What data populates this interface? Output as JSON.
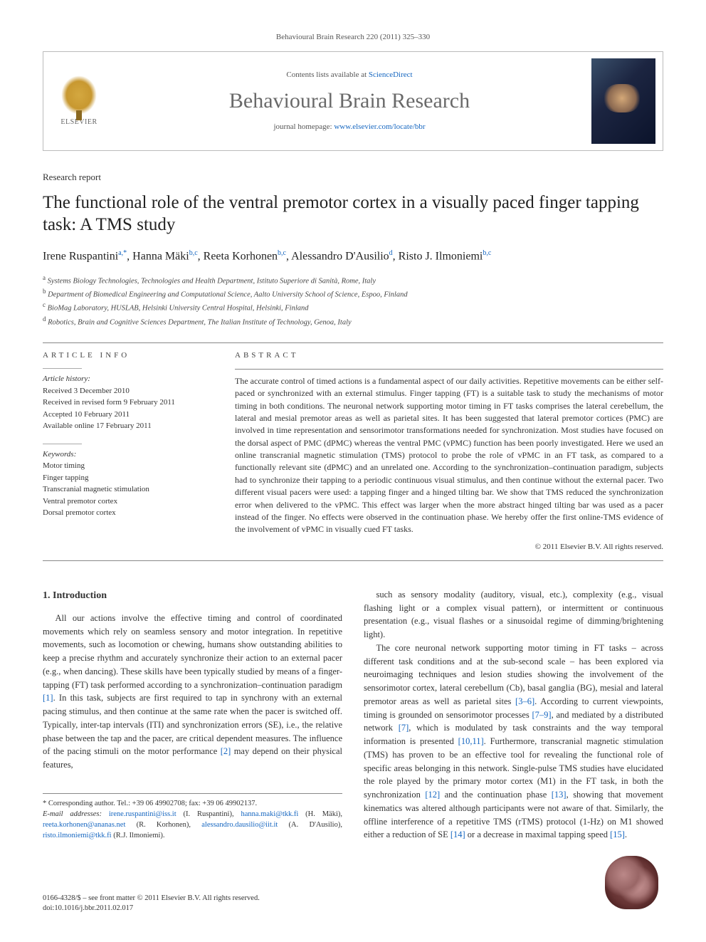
{
  "header": {
    "citation": "Behavioural Brain Research 220 (2011) 325–330",
    "contents_prefix": "Contents lists available at ",
    "contents_link": "ScienceDirect",
    "journal_name": "Behavioural Brain Research",
    "homepage_prefix": "journal homepage: ",
    "homepage_link": "www.elsevier.com/locate/bbr",
    "publisher_label": "ELSEVIER"
  },
  "article": {
    "type": "Research report",
    "title": "The functional role of the ventral premotor cortex in a visually paced finger tapping task: A TMS study",
    "authors_html": "Irene Ruspantini<sup>a,*</sup>, Hanna Mäki<sup>b,c</sup>, Reeta Korhonen<sup>b,c</sup>, Alessandro D'Ausilio<sup>d</sup>, Risto J. Ilmoniemi<sup>b,c</sup>",
    "affiliations": [
      "a Systems Biology Technologies, Technologies and Health Department, Istituto Superiore di Sanità, Rome, Italy",
      "b Department of Biomedical Engineering and Computational Science, Aalto University School of Science, Espoo, Finland",
      "c BioMag Laboratory, HUSLAB, Helsinki University Central Hospital, Helsinki, Finland",
      "d Robotics, Brain and Cognitive Sciences Department, The Italian Institute of Technology, Genoa, Italy"
    ]
  },
  "info": {
    "label": "ARTICLE INFO",
    "history_label": "Article history:",
    "history": [
      "Received 3 December 2010",
      "Received in revised form 9 February 2011",
      "Accepted 10 February 2011",
      "Available online 17 February 2011"
    ],
    "keywords_label": "Keywords:",
    "keywords": [
      "Motor timing",
      "Finger tapping",
      "Transcranial magnetic stimulation",
      "Ventral premotor cortex",
      "Dorsal premotor cortex"
    ]
  },
  "abstract": {
    "label": "ABSTRACT",
    "text": "The accurate control of timed actions is a fundamental aspect of our daily activities. Repetitive movements can be either self-paced or synchronized with an external stimulus. Finger tapping (FT) is a suitable task to study the mechanisms of motor timing in both conditions. The neuronal network supporting motor timing in FT tasks comprises the lateral cerebellum, the lateral and mesial premotor areas as well as parietal sites. It has been suggested that lateral premotor cortices (PMC) are involved in time representation and sensorimotor transformations needed for synchronization. Most studies have focused on the dorsal aspect of PMC (dPMC) whereas the ventral PMC (vPMC) function has been poorly investigated. Here we used an online transcranial magnetic stimulation (TMS) protocol to probe the role of vPMC in an FT task, as compared to a functionally relevant site (dPMC) and an unrelated one. According to the synchronization–continuation paradigm, subjects had to synchronize their tapping to a periodic continuous visual stimulus, and then continue without the external pacer. Two different visual pacers were used: a tapping finger and a hinged tilting bar. We show that TMS reduced the synchronization error when delivered to the vPMC. This effect was larger when the more abstract hinged tilting bar was used as a pacer instead of the finger. No effects were observed in the continuation phase. We hereby offer the first online-TMS evidence of the involvement of vPMC in visually cued FT tasks.",
    "copyright": "© 2011 Elsevier B.V. All rights reserved."
  },
  "body": {
    "intro_heading": "1. Introduction",
    "p1": "All our actions involve the effective timing and control of coordinated movements which rely on seamless sensory and motor integration. In repetitive movements, such as locomotion or chewing, humans show outstanding abilities to keep a precise rhythm and accurately synchronize their action to an external pacer (e.g., when dancing). These skills have been typically studied by means of a finger-tapping (FT) task performed according to a synchronization–continuation paradigm [1]. In this task, subjects are first required to tap in synchrony with an external pacing stimulus, and then continue at the same rate when the pacer is switched off. Typically, inter-tap intervals (ITI) and synchronization errors (SE), i.e., the relative phase between the tap and the pacer, are critical dependent measures. The influence of the pacing stimuli on the motor performance [2] may depend on their physical features,",
    "p2": "such as sensory modality (auditory, visual, etc.), complexity (e.g., visual flashing light or a complex visual pattern), or intermittent or continuous presentation (e.g., visual flashes or a sinusoidal regime of dimming/brightening light).",
    "p3": "The core neuronal network supporting motor timing in FT tasks – across different task conditions and at the sub-second scale – has been explored via neuroimaging techniques and lesion studies showing the involvement of the sensorimotor cortex, lateral cerebellum (Cb), basal ganglia (BG), mesial and lateral premotor areas as well as parietal sites [3–6]. According to current viewpoints, timing is grounded on sensorimotor processes [7–9], and mediated by a distributed network [7], which is modulated by task constraints and the way temporal information is presented [10,11]. Furthermore, transcranial magnetic stimulation (TMS) has proven to be an effective tool for revealing the functional role of specific areas belonging in this network. Single-pulse TMS studies have elucidated the role played by the primary motor cortex (M1) in the FT task, in both the synchronization [12] and the continuation phase [13], showing that movement kinematics was altered although participants were not aware of that. Similarly, the offline interference of a repetitive TMS (rTMS) protocol (1-Hz) on M1 showed either a reduction of SE [14] or a decrease in maximal tapping speed [15]."
  },
  "footnotes": {
    "corresponding": "* Corresponding author. Tel.: +39 06 49902708; fax: +39 06 49902137.",
    "emails_label": "E-mail addresses: ",
    "emails": "irene.ruspantini@iss.it (I. Ruspantini), hanna.maki@tkk.fi (H. Mäki), reeta.korhonen@ananas.net (R. Korhonen), alessandro.dausilio@iit.it (A. D'Ausilio), risto.ilmoniemi@tkk.fi (R.J. Ilmoniemi)."
  },
  "footer": {
    "issn": "0166-4328/$ – see front matter © 2011 Elsevier B.V. All rights reserved.",
    "doi": "doi:10.1016/j.bbr.2011.02.017"
  },
  "colors": {
    "link": "#1566c0",
    "text": "#333333",
    "rule": "#888888"
  }
}
